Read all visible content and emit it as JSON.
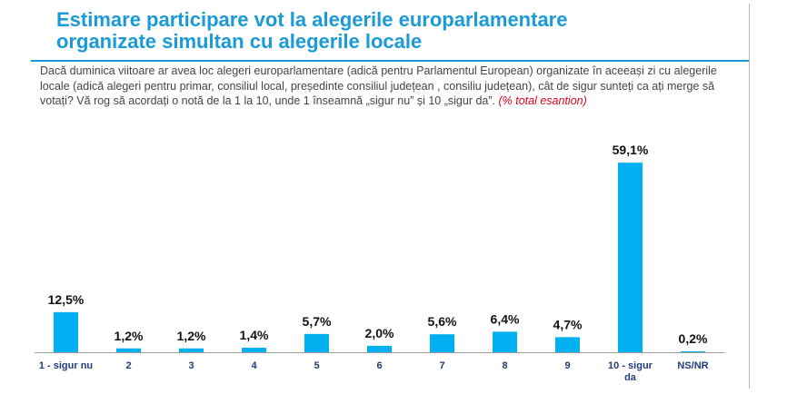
{
  "header": {
    "title_line1": "Estimare participare vot la alegerile europarlamentare",
    "title_line2": "organizate simultan cu alegerile locale"
  },
  "question": {
    "text": "Dacă duminica viitoare ar avea loc alegeri europarlamentare (adică pentru Parlamentul European) organizate în aceeași zi cu alegerile locale (adică alegeri pentru primar, consiliul local, președinte consiliul județean , consiliu județean), cât de sigur sunteți ca ați merge să votați? Vă rog să acordați o notă de la 1 la 10, unde 1 înseamnă „sigur nu” și 10  „sigur da”.",
    "note": "(% total esantion)"
  },
  "colors": {
    "bar": "#00b0f0",
    "title": "#1a9ad6",
    "axis_labels": "#1f3c78",
    "note": "#e0001b"
  },
  "chart_data": {
    "type": "bar",
    "categories": [
      "1 - sigur nu",
      "2",
      "3",
      "4",
      "5",
      "6",
      "7",
      "8",
      "9",
      "10 - sigur da",
      "NS/NR"
    ],
    "values": [
      12.5,
      1.2,
      1.2,
      1.4,
      5.7,
      2.0,
      5.6,
      6.4,
      4.7,
      59.1,
      0.2
    ],
    "value_labels": [
      "12,5%",
      "1,2%",
      "1,2%",
      "1,4%",
      "5,7%",
      "2,0%",
      "5,6%",
      "6,4%",
      "4,7%",
      "59,1%",
      "0,2%"
    ],
    "tick_labels": [
      [
        "1 - sigur nu"
      ],
      [
        "2"
      ],
      [
        "3"
      ],
      [
        "4"
      ],
      [
        "5"
      ],
      [
        "6"
      ],
      [
        "7"
      ],
      [
        "8"
      ],
      [
        "9"
      ],
      [
        "10 - sigur",
        "da"
      ],
      [
        "NS/NR"
      ]
    ],
    "ylim": [
      0,
      60
    ],
    "grid": false,
    "legend": "none"
  }
}
